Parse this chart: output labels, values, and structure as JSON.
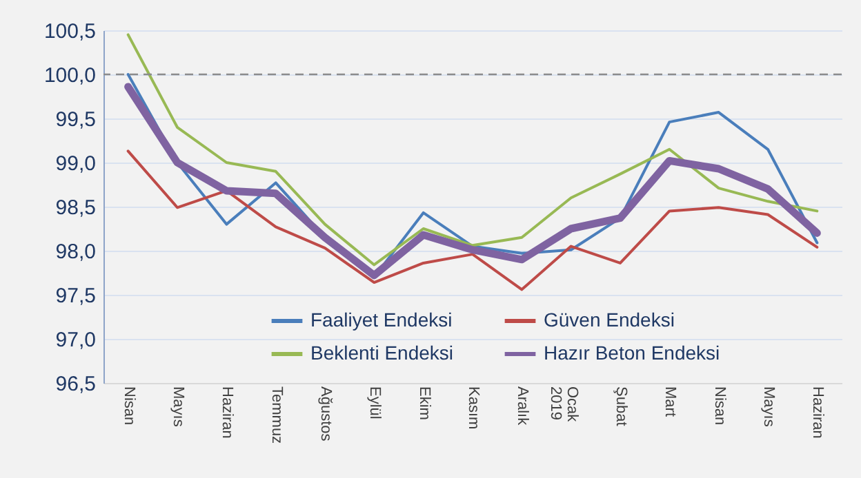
{
  "chart_data": {
    "type": "line",
    "categories": [
      "Nisan",
      "Mayıs",
      "Haziran",
      "Temmuz",
      "Ağustos",
      "Eylül",
      "Ekim",
      "Kasım",
      "Aralık",
      "Ocak 2019",
      "Şubat",
      "Mart",
      "Nisan",
      "Mayıs",
      "Haziran"
    ],
    "series": [
      {
        "name": "Faaliyet Endeksi",
        "color": "#4a7ebb",
        "values": [
          100.0,
          99.0,
          98.3,
          98.77,
          98.15,
          97.7,
          98.43,
          98.05,
          97.97,
          98.01,
          98.37,
          99.46,
          99.57,
          99.15,
          98.09
        ]
      },
      {
        "name": "Güven Endeksi",
        "color": "#be4b48",
        "values": [
          99.13,
          98.49,
          98.68,
          98.27,
          98.03,
          97.64,
          97.86,
          97.96,
          97.56,
          98.05,
          97.86,
          98.45,
          98.49,
          98.41,
          98.04
        ]
      },
      {
        "name": "Beklenti Endeksi",
        "color": "#98b954",
        "values": [
          100.45,
          99.4,
          99.0,
          98.9,
          98.3,
          97.84,
          98.25,
          98.06,
          98.15,
          98.6,
          98.87,
          99.15,
          98.71,
          98.56,
          98.45
        ]
      },
      {
        "name": "Hazır Beton Endeksi",
        "color": "#7f63a1",
        "values": [
          99.86,
          99.0,
          98.68,
          98.65,
          98.15,
          97.72,
          98.18,
          98.01,
          97.9,
          98.25,
          98.37,
          99.02,
          98.93,
          98.7,
          98.2
        ]
      }
    ],
    "ylim": [
      96.5,
      100.5
    ],
    "yticks": [
      {
        "value": 96.5,
        "label": "96,5"
      },
      {
        "value": 97,
        "label": "97,0"
      },
      {
        "value": 97.5,
        "label": "97,5"
      },
      {
        "value": 98,
        "label": "98,0"
      },
      {
        "value": 98.5,
        "label": "98,5"
      },
      {
        "value": 99,
        "label": "99,0"
      },
      {
        "value": 99.5,
        "label": "99,5"
      },
      {
        "value": 100,
        "label": "100,0"
      },
      {
        "value": 100.5,
        "label": "100,5"
      }
    ],
    "ref_lines": [
      {
        "axis": "y",
        "value": 100,
        "color": "#8c8c8c",
        "line_style": "dashed"
      }
    ],
    "grid": "y",
    "legend": "bottom",
    "marker": "none",
    "line_style": "solid"
  }
}
